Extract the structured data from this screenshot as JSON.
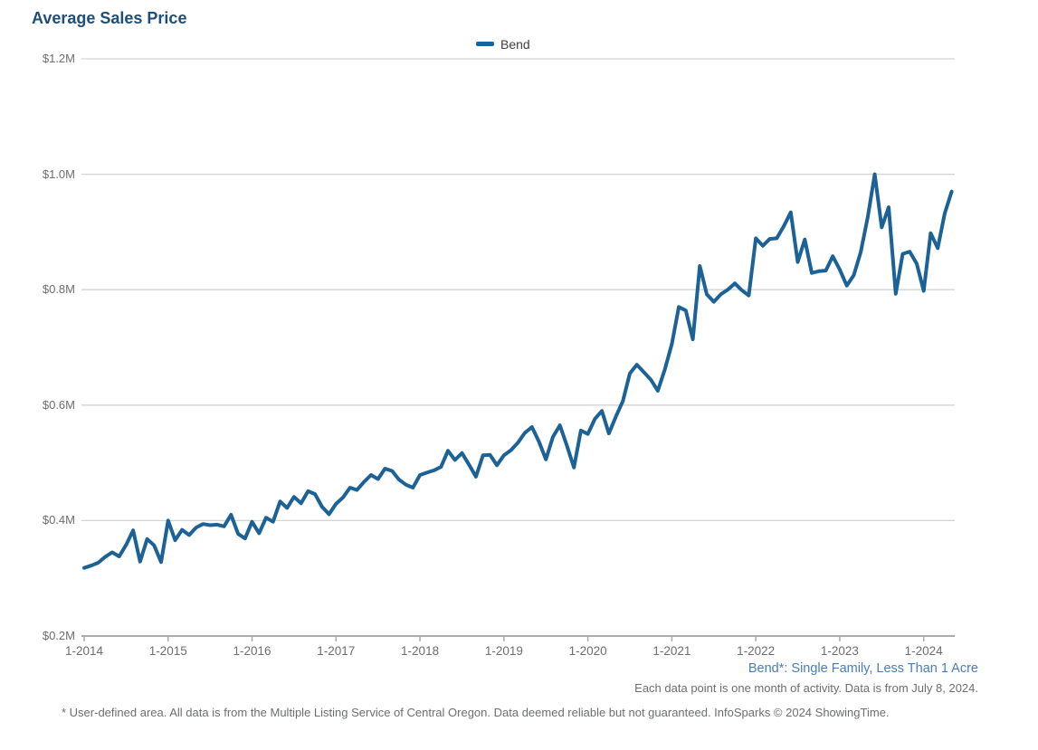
{
  "title": "Average Sales Price",
  "legend": {
    "label": "Bend"
  },
  "colors": {
    "title": "#1e4e79",
    "line": "#1c6296",
    "legend_text": "#414042",
    "gridline": "#d2d3d5",
    "axis_line": "#a9abae",
    "axis_text": "#6d6e71",
    "annotation_blue": "#4a7ebb",
    "note_gray": "#6d6e71"
  },
  "annotations": {
    "series_note": "Bend*: Single Family, Less Than 1 Acre",
    "data_note": "Each data point is one month of activity. Data is from July 8, 2024.",
    "footnote": "* User-defined area. All data is from the Multiple Listing Service of Central Oregon. Data deemed reliable but not guaranteed. InfoSparks © 2024 ShowingTime."
  },
  "chart_data": {
    "type": "line",
    "title": "Average Sales Price",
    "y_unit": "million USD",
    "ylim": [
      0.2,
      1.2
    ],
    "grid": "horizontal",
    "legend_position": "top-center",
    "x_start_month": "1-2014",
    "x_end_month": "5-2024",
    "x_tick_labels": [
      "1-2014",
      "1-2015",
      "1-2016",
      "1-2017",
      "1-2018",
      "1-2019",
      "1-2020",
      "1-2021",
      "1-2022",
      "1-2023",
      "1-2024"
    ],
    "y_tick_values": [
      0.2,
      0.4,
      0.6,
      0.8,
      1.0,
      1.2
    ],
    "y_tick_labels": [
      "$0.2M",
      "$0.4M",
      "$0.6M",
      "$0.8M",
      "$1.0M",
      "$1.2M"
    ],
    "series": [
      {
        "name": "Bend",
        "color": "#1c6296",
        "values": [
          0.318,
          0.322,
          0.327,
          0.337,
          0.345,
          0.338,
          0.358,
          0.383,
          0.329,
          0.368,
          0.357,
          0.328,
          0.4,
          0.366,
          0.384,
          0.375,
          0.388,
          0.394,
          0.392,
          0.393,
          0.39,
          0.41,
          0.377,
          0.369,
          0.398,
          0.378,
          0.405,
          0.398,
          0.433,
          0.422,
          0.441,
          0.43,
          0.451,
          0.446,
          0.424,
          0.411,
          0.429,
          0.44,
          0.457,
          0.453,
          0.467,
          0.479,
          0.472,
          0.49,
          0.486,
          0.471,
          0.462,
          0.457,
          0.479,
          0.483,
          0.487,
          0.493,
          0.521,
          0.505,
          0.517,
          0.497,
          0.476,
          0.513,
          0.514,
          0.496,
          0.513,
          0.522,
          0.535,
          0.552,
          0.562,
          0.537,
          0.506,
          0.545,
          0.565,
          0.53,
          0.492,
          0.556,
          0.55,
          0.576,
          0.59,
          0.551,
          0.58,
          0.607,
          0.655,
          0.67,
          0.657,
          0.644,
          0.625,
          0.662,
          0.706,
          0.77,
          0.764,
          0.714,
          0.841,
          0.792,
          0.779,
          0.792,
          0.8,
          0.811,
          0.799,
          0.79,
          0.889,
          0.876,
          0.888,
          0.889,
          0.91,
          0.934,
          0.848,
          0.887,
          0.829,
          0.832,
          0.833,
          0.858,
          0.835,
          0.807,
          0.825,
          0.865,
          0.925,
          1.0,
          0.908,
          0.943,
          0.793,
          0.862,
          0.866,
          0.845,
          0.798,
          0.898,
          0.872,
          0.932,
          0.97
        ]
      }
    ]
  }
}
